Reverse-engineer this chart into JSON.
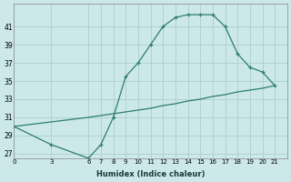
{
  "xlabel": "Humidex (Indice chaleur)",
  "line_color": "#2d7d6e",
  "bg_color": "#cce8e8",
  "grid_color": "#aacfcf",
  "curve_x": [
    0,
    3,
    6,
    7,
    8,
    9,
    10,
    11,
    12,
    13,
    14,
    15,
    16,
    17,
    18,
    19,
    20,
    21
  ],
  "curve_y": [
    30,
    28,
    26.5,
    28,
    31,
    35.5,
    37,
    39,
    41,
    42,
    42.3,
    42.3,
    42.3,
    41,
    38,
    36.5,
    36,
    34.5
  ],
  "line2_x": [
    0,
    3,
    6,
    7,
    8,
    9,
    10,
    11,
    12,
    13,
    14,
    15,
    16,
    17,
    18,
    19,
    20,
    21
  ],
  "line2_y": [
    30,
    30.5,
    31,
    31.2,
    31.4,
    31.6,
    31.8,
    32,
    32.3,
    32.5,
    32.8,
    33,
    33.3,
    33.5,
    33.8,
    34,
    34.2,
    34.5
  ],
  "xticks": [
    0,
    3,
    6,
    7,
    8,
    9,
    10,
    11,
    12,
    13,
    14,
    15,
    16,
    17,
    18,
    19,
    20,
    21
  ],
  "yticks": [
    27,
    29,
    31,
    33,
    35,
    37,
    39,
    41
  ],
  "xlim": [
    0,
    22
  ],
  "ylim": [
    26.5,
    43.5
  ]
}
